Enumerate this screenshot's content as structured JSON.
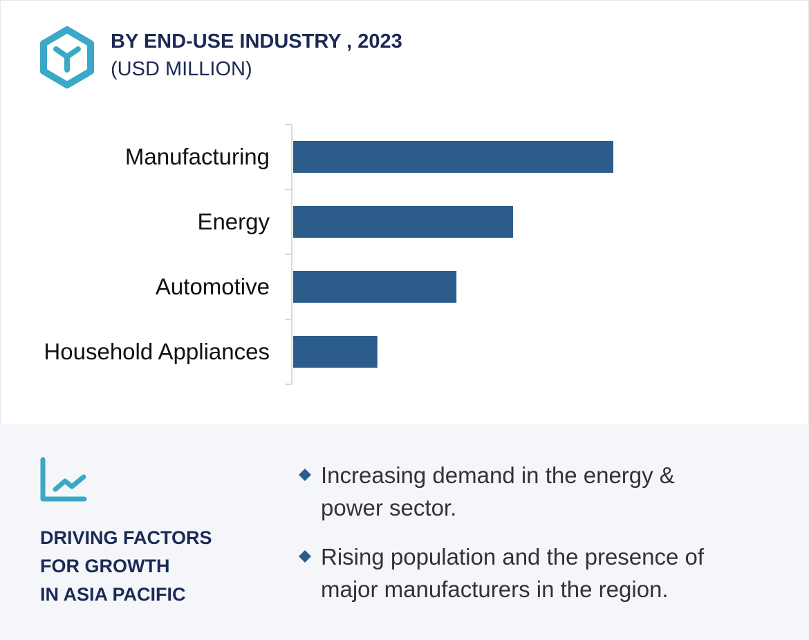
{
  "header": {
    "title": "BY END-USE INDUSTRY , 2023",
    "subtitle": "(USD MILLION)",
    "icon": "cube-icon"
  },
  "chart_data": {
    "type": "bar",
    "orientation": "horizontal",
    "title": "BY END-USE INDUSTRY , 2023",
    "unit": "(USD MILLION)",
    "categories": [
      "Manufacturing",
      "Energy",
      "Automotive",
      "Household Appliances"
    ],
    "values": [
      100,
      68.7,
      51,
      26.3
    ],
    "xlim": [
      0,
      100
    ],
    "grid": false,
    "bar_color": "#2c5d8a",
    "value_axis_labels_shown": false
  },
  "footer": {
    "icon": "line-chart-icon",
    "heading_lines": [
      "DRIVING FACTORS",
      "FOR GROWTH",
      "IN ASIA PACIFIC"
    ],
    "bullets": [
      "Increasing demand in the energy & power sector.",
      "Rising population and the presence of major manufacturers in the region."
    ]
  },
  "colors": {
    "accent": "#3aa8c6",
    "navy": "#1b2a55",
    "bar": "#2c5d8a",
    "panel": "#f4f6fa"
  }
}
